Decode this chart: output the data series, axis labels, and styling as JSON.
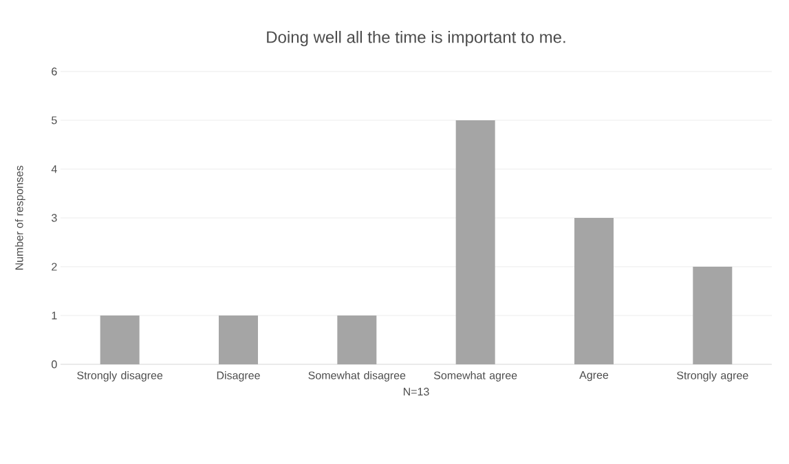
{
  "chart_data": {
    "type": "bar",
    "title": "Doing well all the time is important to me.",
    "categories": [
      "Strongly disagree",
      "Disagree",
      "Somewhat disagree",
      "Somewhat agree",
      "Agree",
      "Strongly agree"
    ],
    "values": [
      1,
      1,
      1,
      5,
      3,
      2
    ],
    "color": "#a5a5a5",
    "ylim": [
      0,
      6
    ],
    "yticks": [
      0,
      1,
      2,
      3,
      4,
      5,
      6
    ],
    "grid": "y",
    "xlabel": "N=13",
    "ylabel": "Number of responses"
  }
}
